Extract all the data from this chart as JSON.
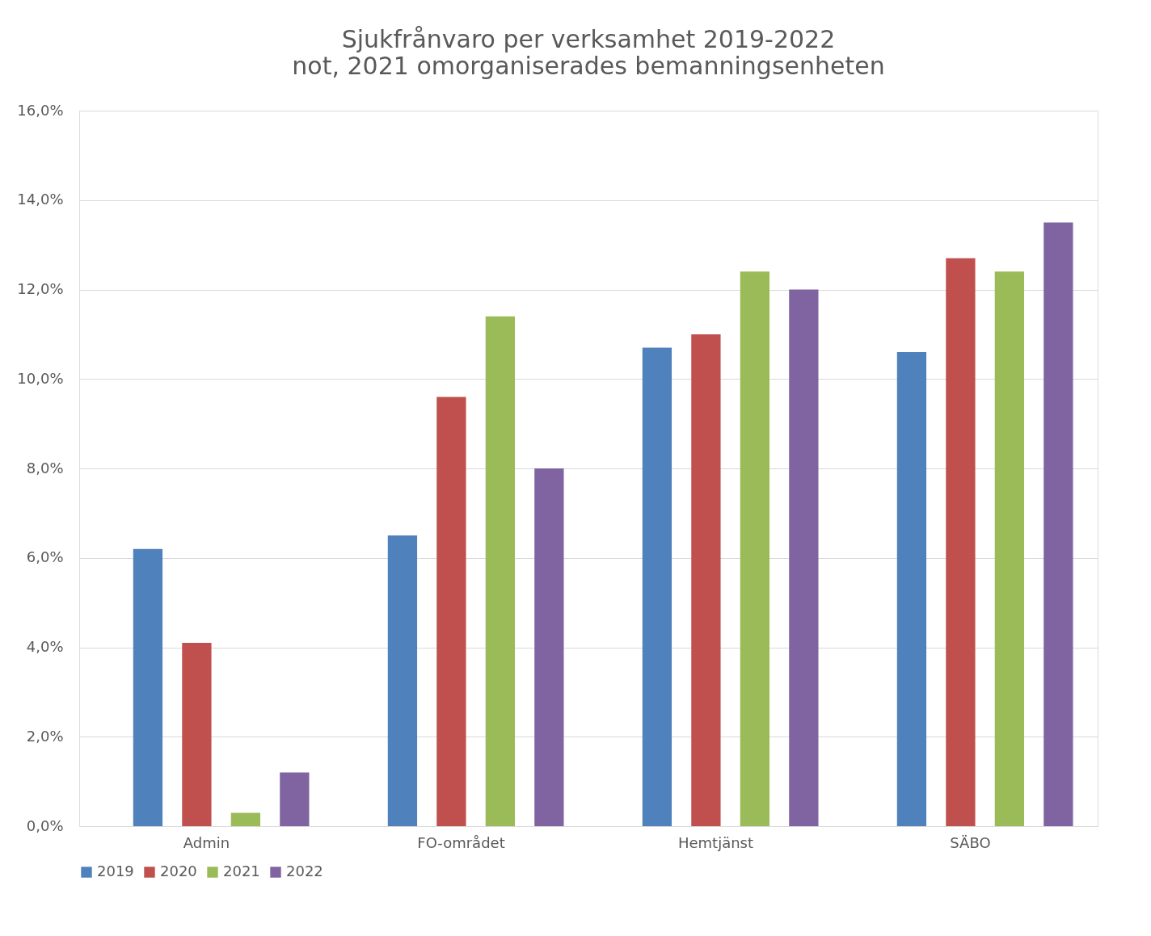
{
  "chart_data": {
    "type": "bar",
    "title": "Sjukfrånvaro per verksamhet 2019-2022",
    "subtitle": "not, 2021 omorganiserades bemanningsenheten",
    "categories": [
      "Admin",
      "FO-området",
      "Hemtjänst",
      "SÄBO"
    ],
    "series": [
      {
        "name": "2019",
        "color": "#4f81bd",
        "values": [
          6.2,
          6.5,
          10.7,
          10.6
        ]
      },
      {
        "name": "2020",
        "color": "#c0504d",
        "values": [
          4.1,
          9.6,
          11.0,
          12.7
        ]
      },
      {
        "name": "2021",
        "color": "#9bbb59",
        "values": [
          0.3,
          11.4,
          12.4,
          12.4
        ]
      },
      {
        "name": "2022",
        "color": "#8064a2",
        "values": [
          1.2,
          8.0,
          12.0,
          13.5
        ]
      }
    ],
    "ylim": [
      0,
      16
    ],
    "yticks": [
      {
        "value": 0,
        "label": "0,0%"
      },
      {
        "value": 2,
        "label": "2,0%"
      },
      {
        "value": 4,
        "label": "4,0%"
      },
      {
        "value": 6,
        "label": "6,0%"
      },
      {
        "value": 8,
        "label": "8,0%"
      },
      {
        "value": 10,
        "label": "10,0%"
      },
      {
        "value": 12,
        "label": "12,0%"
      },
      {
        "value": 14,
        "label": "14,0%"
      },
      {
        "value": 16,
        "label": "16,0%"
      }
    ],
    "grid": "y",
    "legend": "bottom"
  }
}
